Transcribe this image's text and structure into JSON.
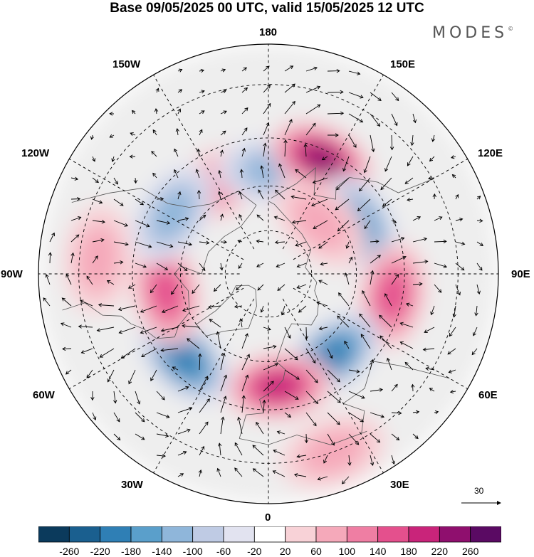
{
  "title": "Base 09/05/2025 00 UTC, valid 15/05/2025 12 UTC",
  "brand": "MODES",
  "brand_mark": "©",
  "longitude_labels": {
    "lon_180": "180",
    "lon_150e": "150E",
    "lon_120e": "120E",
    "lon_90e": "90E",
    "lon_60e": "60E",
    "lon_30e": "30E",
    "lon_0": "0",
    "lon_30w": "30W",
    "lon_60w": "60W",
    "lon_90w": "90W",
    "lon_120w": "120W",
    "lon_150w": "150W"
  },
  "reference_vector_label": "30",
  "colorbar": {
    "tick_labels": [
      "-260",
      "-220",
      "-180",
      "-140",
      "-100",
      "-60",
      "-20",
      "20",
      "60",
      "100",
      "140",
      "180",
      "220",
      "260"
    ],
    "colors": [
      "#0b3a5c",
      "#1a5f8f",
      "#2f7fb5",
      "#5a9fcb",
      "#8fb6da",
      "#bfcbe4",
      "#e2e3f0",
      "#ffffff",
      "#f8d2d7",
      "#f5a9ba",
      "#ef7ea3",
      "#e4508d",
      "#c9247a",
      "#8f0f6e",
      "#5a0a63"
    ]
  },
  "anomaly_centers": [
    {
      "name": "ridge-150w",
      "sign": "positive",
      "lon": -150,
      "lat": 55,
      "level": 3
    },
    {
      "name": "trough-180",
      "sign": "negative",
      "lon": 178,
      "lat": 55,
      "level": 3
    },
    {
      "name": "ridge-155e",
      "sign": "positive",
      "lon": 155,
      "lat": 48,
      "level": 6
    },
    {
      "name": "trough-120e",
      "sign": "negative",
      "lon": 118,
      "lat": 55,
      "level": 4
    },
    {
      "name": "ridge-80e",
      "sign": "positive",
      "lon": 80,
      "lat": 48,
      "level": 4
    },
    {
      "name": "trough-40e",
      "sign": "negative",
      "lon": 38,
      "lat": 55,
      "level": 5
    },
    {
      "name": "ridge-5e",
      "sign": "positive",
      "lon": 5,
      "lat": 52,
      "level": 5
    },
    {
      "name": "trough-45w",
      "sign": "negative",
      "lon": -45,
      "lat": 50,
      "level": 5
    },
    {
      "name": "ridge-80w",
      "sign": "positive",
      "lon": -80,
      "lat": 55,
      "level": 4
    },
    {
      "name": "trough-120w",
      "sign": "negative",
      "lon": -122,
      "lat": 52,
      "level": 3
    },
    {
      "name": "ridge-95w",
      "sign": "positive",
      "lon": -95,
      "lat": 35,
      "level": 2
    },
    {
      "name": "ridge-20e-south",
      "sign": "positive",
      "lon": 20,
      "lat": 30,
      "level": 2
    },
    {
      "name": "ridge-130e-east",
      "sign": "positive",
      "lon": 135,
      "lat": 65,
      "level": 2
    }
  ]
}
